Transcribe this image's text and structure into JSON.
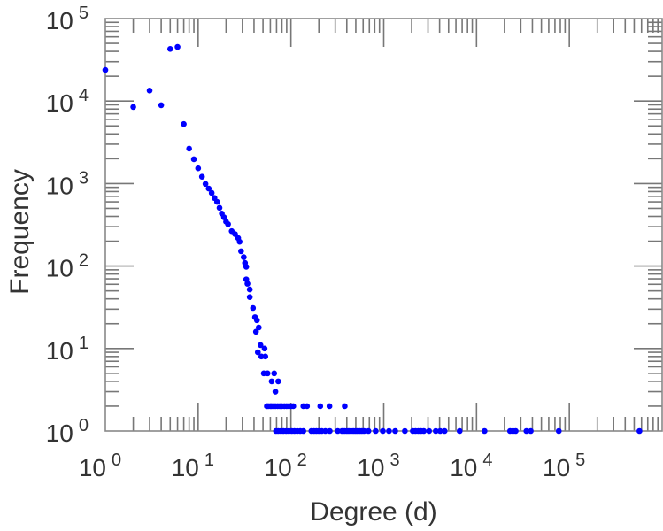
{
  "chart_data": {
    "type": "scatter",
    "title": "",
    "xlabel": "Degree (d)",
    "ylabel": "Frequency",
    "xscale": "log",
    "yscale": "log",
    "xlim": [
      1,
      1000000
    ],
    "ylim": [
      1,
      100000
    ],
    "grid": false,
    "marker_color": "#0000ff",
    "x_tick_labels": [
      {
        "base": "10",
        "exp": "0",
        "value": 1
      },
      {
        "base": "10",
        "exp": "1",
        "value": 10
      },
      {
        "base": "10",
        "exp": "2",
        "value": 100
      },
      {
        "base": "10",
        "exp": "3",
        "value": 1000
      },
      {
        "base": "10",
        "exp": "4",
        "value": 10000
      },
      {
        "base": "10",
        "exp": "5",
        "value": 100000
      }
    ],
    "y_tick_labels": [
      {
        "base": "10",
        "exp": "0",
        "value": 1
      },
      {
        "base": "10",
        "exp": "1",
        "value": 10
      },
      {
        "base": "10",
        "exp": "2",
        "value": 100
      },
      {
        "base": "10",
        "exp": "3",
        "value": 1000
      },
      {
        "base": "10",
        "exp": "4",
        "value": 10000
      },
      {
        "base": "10",
        "exp": "5",
        "value": 100000
      }
    ],
    "points": [
      [
        1,
        23800
      ],
      [
        2,
        8470
      ],
      [
        3,
        13400
      ],
      [
        4,
        8900
      ],
      [
        5,
        42800
      ],
      [
        6,
        45300
      ],
      [
        7,
        5260
      ],
      [
        8,
        2650
      ],
      [
        9,
        1970
      ],
      [
        10,
        1530
      ],
      [
        11,
        1210
      ],
      [
        12,
        990
      ],
      [
        13,
        870
      ],
      [
        14,
        770
      ],
      [
        15,
        668
      ],
      [
        16,
        600
      ],
      [
        17,
        508
      ],
      [
        18,
        433
      ],
      [
        19,
        390
      ],
      [
        20,
        345
      ],
      [
        21,
        322
      ],
      [
        23,
        265
      ],
      [
        25,
        244
      ],
      [
        27,
        218
      ],
      [
        28,
        197
      ],
      [
        29,
        151
      ],
      [
        31,
        128
      ],
      [
        32,
        109
      ],
      [
        33,
        98
      ],
      [
        33,
        69
      ],
      [
        34,
        61
      ],
      [
        36,
        52
      ],
      [
        36,
        42
      ],
      [
        39,
        31
      ],
      [
        41,
        24
      ],
      [
        43,
        22
      ],
      [
        45,
        18
      ],
      [
        42,
        16
      ],
      [
        47,
        11
      ],
      [
        52,
        10
      ],
      [
        44,
        9
      ],
      [
        48,
        8
      ],
      [
        53,
        8
      ],
      [
        51,
        5
      ],
      [
        56,
        5
      ],
      [
        66,
        5
      ],
      [
        62,
        4
      ],
      [
        73,
        4
      ],
      [
        68,
        3
      ],
      [
        55,
        2
      ],
      [
        57,
        2
      ],
      [
        60,
        2
      ],
      [
        62,
        2
      ],
      [
        65,
        2
      ],
      [
        68,
        2
      ],
      [
        72,
        2
      ],
      [
        76,
        2
      ],
      [
        80,
        2
      ],
      [
        85,
        2
      ],
      [
        90,
        2
      ],
      [
        95,
        2
      ],
      [
        100,
        2
      ],
      [
        106,
        2
      ],
      [
        136,
        2
      ],
      [
        149,
        2
      ],
      [
        207,
        2
      ],
      [
        260,
        2
      ],
      [
        380,
        2
      ],
      [
        69,
        1
      ],
      [
        73,
        1
      ],
      [
        78,
        1
      ],
      [
        83,
        1
      ],
      [
        89,
        1
      ],
      [
        95,
        1
      ],
      [
        102,
        1
      ],
      [
        109,
        1
      ],
      [
        117,
        1
      ],
      [
        126,
        1
      ],
      [
        136,
        1
      ],
      [
        166,
        1
      ],
      [
        177,
        1
      ],
      [
        188,
        1
      ],
      [
        200,
        1
      ],
      [
        215,
        1
      ],
      [
        235,
        1
      ],
      [
        262,
        1
      ],
      [
        320,
        1
      ],
      [
        355,
        1
      ],
      [
        377,
        1
      ],
      [
        399,
        1
      ],
      [
        420,
        1
      ],
      [
        444,
        1
      ],
      [
        470,
        1
      ],
      [
        495,
        1
      ],
      [
        520,
        1
      ],
      [
        550,
        1
      ],
      [
        580,
        1
      ],
      [
        613,
        1
      ],
      [
        684,
        1
      ],
      [
        818,
        1
      ],
      [
        978,
        1
      ],
      [
        1140,
        1
      ],
      [
        1330,
        1
      ],
      [
        1690,
        1
      ],
      [
        2060,
        1
      ],
      [
        2200,
        1
      ],
      [
        2360,
        1
      ],
      [
        2520,
        1
      ],
      [
        2700,
        1
      ],
      [
        3080,
        1
      ],
      [
        3640,
        1
      ],
      [
        4060,
        1
      ],
      [
        4530,
        1
      ],
      [
        6580,
        1
      ],
      [
        12200,
        1
      ],
      [
        23000,
        1
      ],
      [
        24700,
        1
      ],
      [
        26400,
        1
      ],
      [
        34500,
        1
      ],
      [
        38400,
        1
      ],
      [
        77000,
        1
      ],
      [
        570000,
        1
      ]
    ]
  }
}
